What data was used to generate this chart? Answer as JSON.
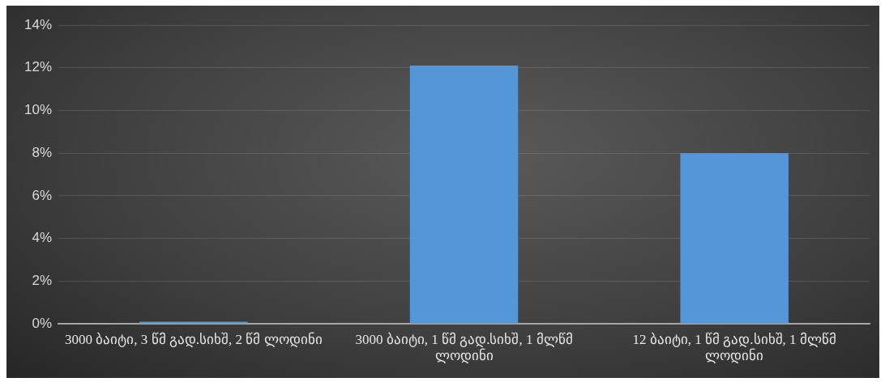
{
  "chart_data": {
    "type": "bar",
    "categories": [
      "3000 ბაიტი, 3 წმ გად.სიხშ, 2 წმ ლოდინი",
      "3000 ბაიტი, 1 წმ გად.სიხშ, 1 მლწმ ლოდინი",
      "12 ბაიტი, 1 წმ გად.სიხშ, 1 მლწმ ლოდინი"
    ],
    "values": [
      0.1,
      12.1,
      8
    ],
    "color": "#5497d8",
    "ylim": [
      0,
      14
    ],
    "yticks": [
      {
        "value": 0,
        "label": "0%"
      },
      {
        "value": 2,
        "label": "2%"
      },
      {
        "value": 4,
        "label": "4%"
      },
      {
        "value": 6,
        "label": "6%"
      },
      {
        "value": 8,
        "label": "8%"
      },
      {
        "value": 10,
        "label": "10%"
      },
      {
        "value": 12,
        "label": "12%"
      },
      {
        "value": 14,
        "label": "14%"
      }
    ],
    "grid": "y",
    "legend": false
  }
}
